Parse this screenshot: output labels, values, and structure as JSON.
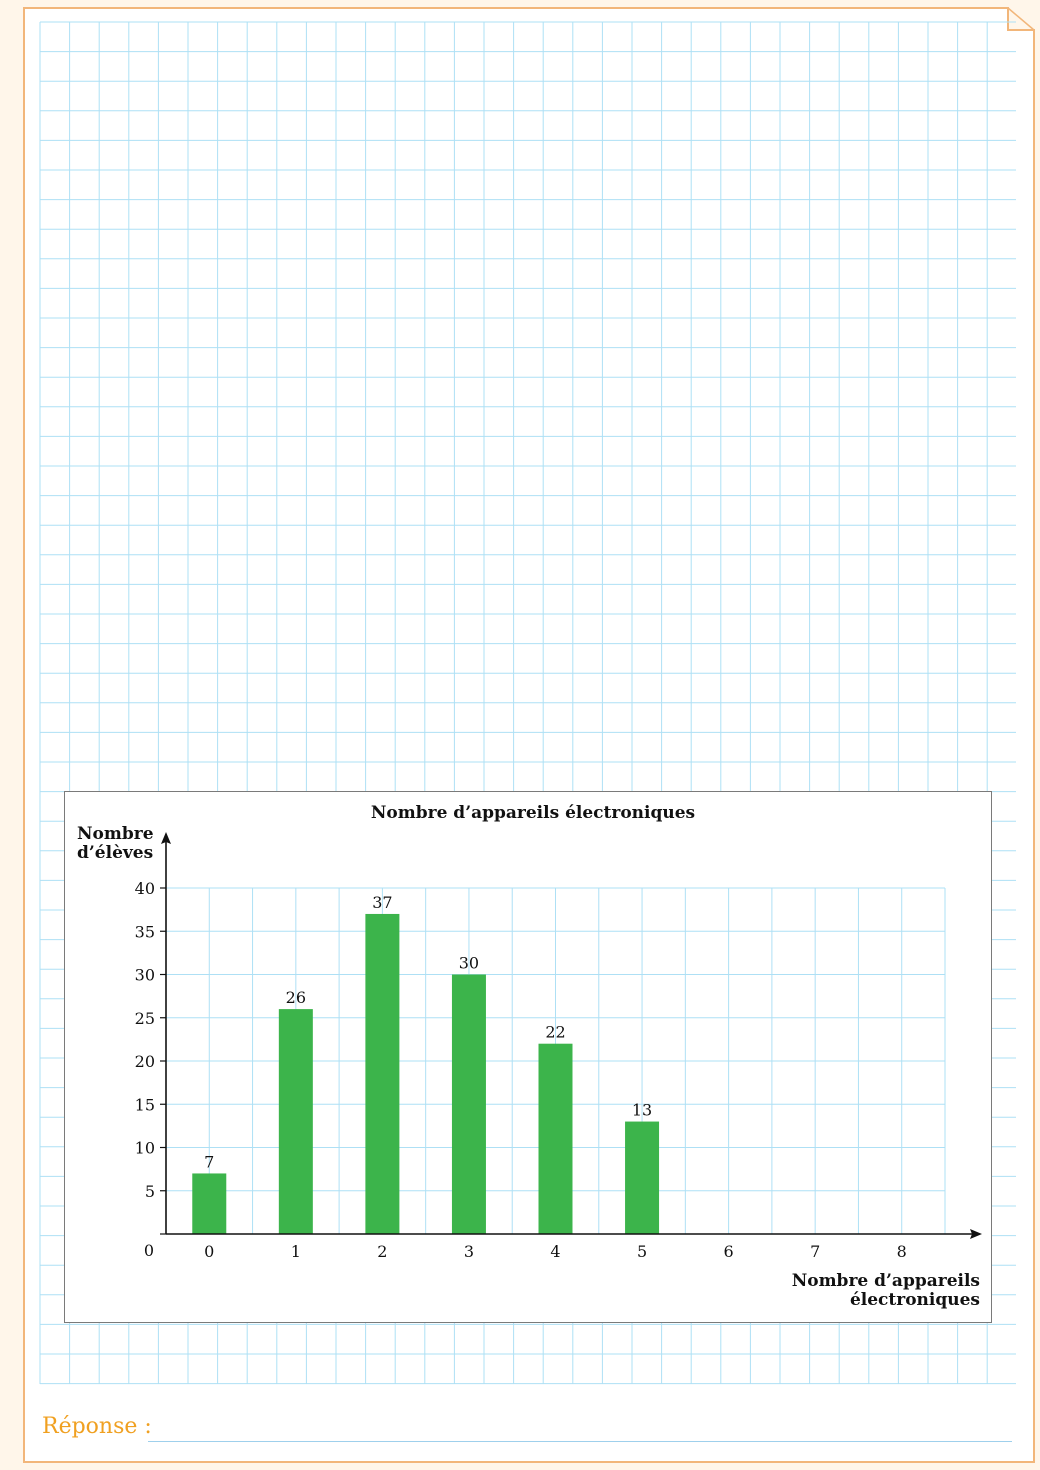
{
  "answer_label": "Réponse :",
  "colors": {
    "grid": "#aee0f5",
    "bar": "#3cb44b",
    "frame": "#f2b67a",
    "answer": "#f0a020"
  },
  "chart_data": {
    "type": "bar",
    "title": "Nombre d’appareils électroniques",
    "ylabel": "Nombre d’élèves",
    "xlabel": "Nombre d’appareils électroniques",
    "categories": [
      "0",
      "1",
      "2",
      "3",
      "4",
      "5",
      "6",
      "7",
      "8"
    ],
    "values": [
      7,
      26,
      37,
      30,
      22,
      13,
      null,
      null,
      null
    ],
    "y_ticks": [
      0,
      5,
      10,
      15,
      20,
      25,
      30,
      35,
      40
    ],
    "ylim": [
      0,
      40
    ],
    "grid": true,
    "data_labels": true
  }
}
